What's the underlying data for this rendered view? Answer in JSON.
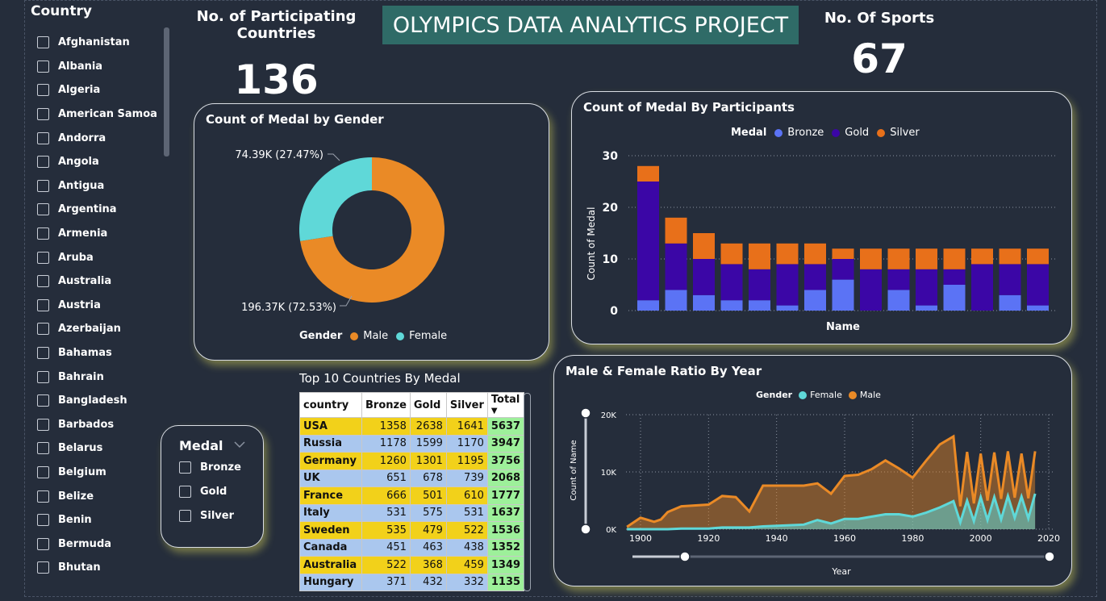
{
  "country_slicer": {
    "title": "Country",
    "items": [
      "Afghanistan",
      "Albania",
      "Algeria",
      "American Samoa",
      "Andorra",
      "Angola",
      "Antigua",
      "Argentina",
      "Armenia",
      "Aruba",
      "Australia",
      "Austria",
      "Azerbaijan",
      "Bahamas",
      "Bahrain",
      "Bangladesh",
      "Barbados",
      "Belarus",
      "Belgium",
      "Belize",
      "Benin",
      "Bermuda",
      "Bhutan"
    ]
  },
  "kpi_countries": {
    "label": "No. of Participating Countries",
    "value": "136"
  },
  "kpi_sports": {
    "label": "No. Of Sports",
    "value": "67"
  },
  "banner": "OLYMPICS DATA ANALYTICS PROJECT",
  "gender_donut": {
    "title": "Count of Medal by Gender",
    "legend_title": "Gender",
    "labels": {
      "female": "74.39K (27.47%)",
      "male": "196.37K (72.53%)"
    },
    "legend": [
      "Male",
      "Female"
    ],
    "colors": {
      "male": "#ea8a26",
      "female": "#5fd8d8"
    },
    "chart_data": {
      "type": "pie",
      "categories": [
        "Male",
        "Female"
      ],
      "values": [
        196370,
        74390
      ]
    }
  },
  "participants_chart": {
    "title": "Count of Medal By Participants",
    "legend_title": "Medal",
    "legend": [
      "Bronze",
      "Gold",
      "Silver"
    ],
    "colors": {
      "bronze": "#5b73f5",
      "gold": "#3b06a6",
      "silver": "#e8701a"
    },
    "ylabel": "Count of Medal",
    "xlabel": "Name",
    "yticks": [
      "0",
      "10",
      "20",
      "30"
    ],
    "chart_data": {
      "type": "bar",
      "stacked": true,
      "ylim": [
        0,
        30
      ],
      "series": [
        {
          "name": "Bronze",
          "values": [
            2,
            4,
            3,
            2,
            2,
            1,
            4,
            6,
            0,
            4,
            1,
            5,
            0,
            3,
            1
          ]
        },
        {
          "name": "Gold",
          "values": [
            23,
            9,
            7,
            7,
            6,
            8,
            5,
            4,
            8,
            4,
            7,
            3,
            9,
            6,
            8
          ]
        },
        {
          "name": "Silver",
          "values": [
            3,
            5,
            5,
            4,
            5,
            4,
            4,
            2,
            4,
            4,
            4,
            4,
            3,
            3,
            3
          ]
        }
      ]
    }
  },
  "medal_slicer": {
    "title": "Medal",
    "items": [
      "Bronze",
      "Gold",
      "Silver"
    ]
  },
  "top10": {
    "title": "Top 10 Countries By Medal",
    "headers": [
      "country",
      "Bronze",
      "Gold",
      "Silver",
      "Total"
    ],
    "rows": [
      [
        "USA",
        "1358",
        "2638",
        "1641",
        "5637"
      ],
      [
        "Russia",
        "1178",
        "1599",
        "1170",
        "3947"
      ],
      [
        "Germany",
        "1260",
        "1301",
        "1195",
        "3756"
      ],
      [
        "UK",
        "651",
        "678",
        "739",
        "2068"
      ],
      [
        "France",
        "666",
        "501",
        "610",
        "1777"
      ],
      [
        "Italy",
        "531",
        "575",
        "531",
        "1637"
      ],
      [
        "Sweden",
        "535",
        "479",
        "522",
        "1536"
      ],
      [
        "Canada",
        "451",
        "463",
        "438",
        "1352"
      ],
      [
        "Australia",
        "522",
        "368",
        "459",
        "1349"
      ],
      [
        "Hungary",
        "371",
        "432",
        "332",
        "1135"
      ]
    ]
  },
  "ratio_chart": {
    "title": "Male & Female Ratio By Year",
    "legend_title": "Gender",
    "legend": [
      "Female",
      "Male"
    ],
    "colors": {
      "female": "#5fd8d8",
      "male": "#ea8a26"
    },
    "ylabel": "Count of Name",
    "xlabel": "Year",
    "yticks": [
      "0K",
      "10K",
      "20K"
    ],
    "xticks": [
      "1900",
      "1920",
      "1940",
      "1960",
      "1980",
      "2000",
      "2020"
    ],
    "chart_data": {
      "type": "area",
      "ylim": [
        0,
        20000
      ],
      "xlim": [
        1896,
        2016
      ],
      "x": [
        1896,
        1900,
        1904,
        1906,
        1908,
        1912,
        1920,
        1924,
        1928,
        1932,
        1936,
        1948,
        1952,
        1956,
        1960,
        1964,
        1968,
        1972,
        1976,
        1980,
        1984,
        1988,
        1992,
        1994,
        1996,
        1998,
        2000,
        2002,
        2004,
        2006,
        2008,
        2010,
        2012,
        2014,
        2016
      ],
      "series": [
        {
          "name": "Male",
          "values": [
            400,
            2000,
            1300,
            1700,
            3000,
            4000,
            4300,
            5800,
            5600,
            3100,
            7600,
            7600,
            8000,
            6200,
            9300,
            9500,
            10500,
            12000,
            10600,
            9000,
            12000,
            14800,
            16200,
            4000,
            13500,
            4500,
            13200,
            5000,
            13400,
            5300,
            13600,
            5500,
            13200,
            5400,
            13600
          ]
        },
        {
          "name": "Female",
          "values": [
            0,
            0,
            0,
            0,
            0,
            100,
            100,
            300,
            300,
            300,
            500,
            800,
            1600,
            1000,
            1800,
            1800,
            2200,
            2600,
            2600,
            2200,
            2900,
            3800,
            4900,
            1200,
            5000,
            1400,
            5600,
            1600,
            5600,
            1700,
            5800,
            2000,
            5700,
            1900,
            6200
          ]
        }
      ]
    }
  }
}
